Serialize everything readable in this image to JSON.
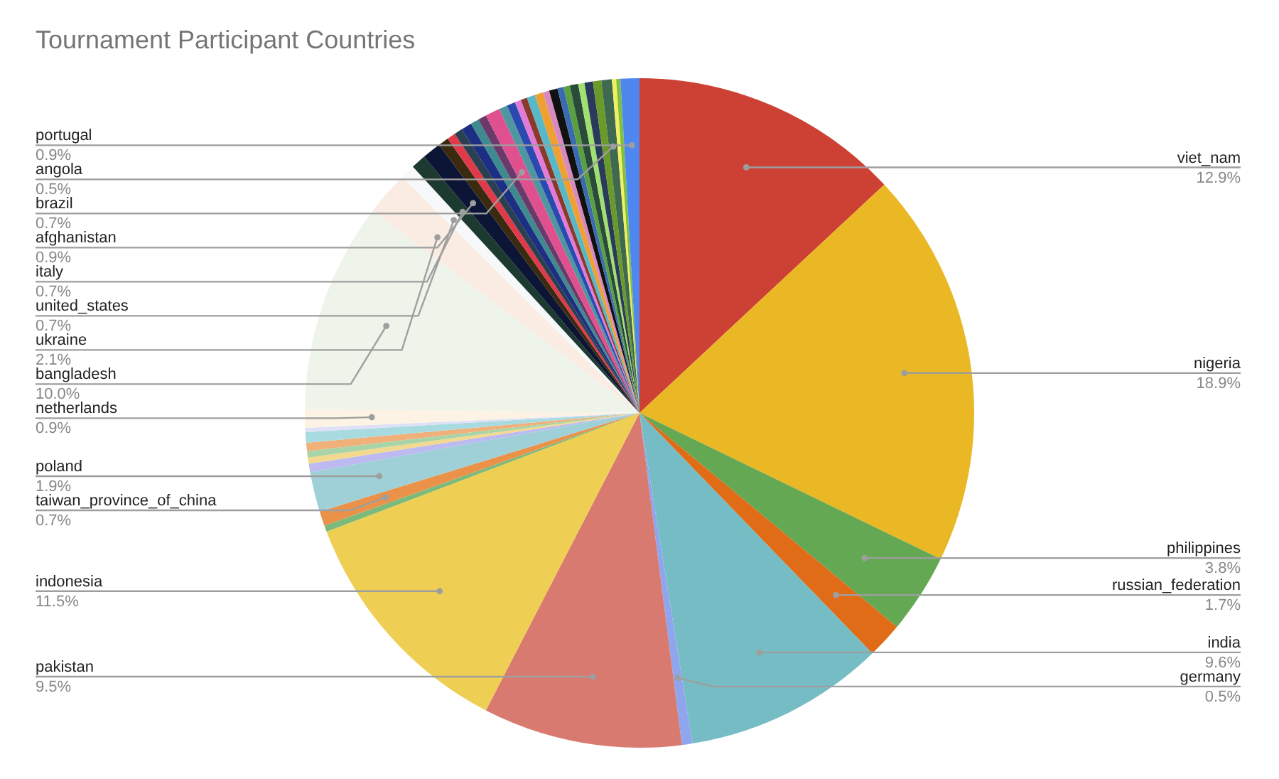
{
  "chart_data": {
    "type": "pie",
    "title": "Tournament Participant Countries",
    "legend": false,
    "categories": [
      "viet_nam",
      "nigeria",
      "philippines",
      "russian_federation",
      "india",
      "germany",
      "pakistan",
      "indonesia",
      null,
      "taiwan_province_of_china",
      "poland",
      null,
      null,
      null,
      null,
      null,
      null,
      "netherlands",
      "bangladesh",
      "ukraine",
      "united_states",
      "italy",
      "afghanistan",
      null,
      null,
      null,
      null,
      null,
      null,
      "brazil",
      null,
      null,
      null,
      null,
      null,
      null,
      null,
      null,
      null,
      null,
      null,
      null,
      null,
      null,
      "angola",
      null,
      null,
      "portugal"
    ],
    "values": [
      12.9,
      18.9,
      3.8,
      1.7,
      9.6,
      0.5,
      9.5,
      11.5,
      0.3,
      0.7,
      1.9,
      0.4,
      0.3,
      0.3,
      0.4,
      0.5,
      0.2,
      0.9,
      10.0,
      2.1,
      0.7,
      0.7,
      0.9,
      0.5,
      0.4,
      0.4,
      0.5,
      0.4,
      0.4,
      0.7,
      0.4,
      0.4,
      0.3,
      0.3,
      0.4,
      0.4,
      0.3,
      0.4,
      0.3,
      0.3,
      0.4,
      0.3,
      0.4,
      0.4,
      0.5,
      0.2,
      0.2,
      0.9
    ],
    "value_labels": [
      "12.9%",
      "18.9%",
      "3.8%",
      "1.7%",
      "9.6%",
      "0.5%",
      "9.5%",
      "11.5%",
      null,
      "0.7%",
      "1.9%",
      null,
      null,
      null,
      null,
      null,
      null,
      "0.9%",
      "10.0%",
      "2.1%",
      "0.7%",
      "0.7%",
      "0.9%",
      null,
      null,
      null,
      null,
      null,
      null,
      "0.7%",
      null,
      null,
      null,
      null,
      null,
      null,
      null,
      null,
      null,
      null,
      null,
      null,
      null,
      null,
      "0.5%",
      null,
      null,
      "0.9%"
    ],
    "colors": [
      "#cc4133",
      "#e9b824",
      "#64a853",
      "#e06c17",
      "#76bcc4",
      "#8fa6ee",
      "#d97a71",
      "#efcf53",
      "#7cba7c",
      "#ea9249",
      "#9fd0d8",
      "#bcbaf0",
      "#f2d98f",
      "#a8d4a8",
      "#f0b07a",
      "#a8dbe0",
      "#dfe0f6",
      "#fdf3e5",
      "#eef4ea",
      "#faece3",
      "#f6f8fa",
      "#1c3a30",
      "#0c1535",
      "#3a2a10",
      "#e03a4a",
      "#2a3f50",
      "#1c2f82",
      "#3e8a8f",
      "#6a3a6a",
      "#e0508f",
      "#4f96a0",
      "#2a4ab0",
      "#e47ad8",
      "#8a3a2a",
      "#58b8c8",
      "#f0a030",
      "#d88ac0",
      "#111111",
      "#3a6ab0",
      "#5aa040",
      "#2a4a3a",
      "#a0e070",
      "#2a3a5a",
      "#6a9a2a",
      "#3f6a4f",
      "#f0f060",
      "#80c040",
      "#4f87f0"
    ]
  }
}
